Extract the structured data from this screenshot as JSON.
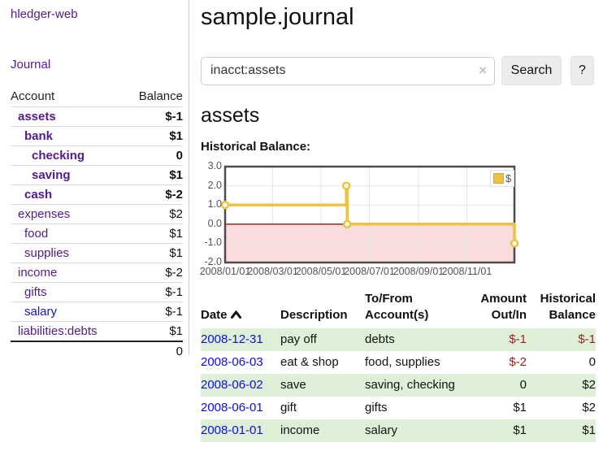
{
  "colors": {
    "link_purple": "#551a8b",
    "link_blue": "#0e0edd",
    "negative_red": "#992222",
    "negative_light": "#c98a8a",
    "row_highlight_green": "#dff0d8",
    "series_yellow": "#edc240",
    "zero_line_red": "#8b1a1a",
    "negative_region_pink": "#fbdcdc"
  },
  "sidebar": {
    "brand": "hledger-web",
    "journal_link": "Journal",
    "accounts": {
      "header_account": "Account",
      "header_balance": "Balance",
      "rows": [
        {
          "name": "assets",
          "balance": "$-1"
        },
        {
          "name": "bank",
          "balance": "$1"
        },
        {
          "name": "checking",
          "balance": "0"
        },
        {
          "name": "saving",
          "balance": "$1"
        },
        {
          "name": "cash",
          "balance": "$-2"
        },
        {
          "name": "expenses",
          "balance": "$2"
        },
        {
          "name": "food",
          "balance": "$1"
        },
        {
          "name": "supplies",
          "balance": "$1"
        },
        {
          "name": "income",
          "balance": "$-2"
        },
        {
          "name": "gifts",
          "balance": "$-1"
        },
        {
          "name": "salary",
          "balance": "$-1"
        },
        {
          "name": "liabilities:debts",
          "balance": "$1"
        }
      ],
      "total": "0"
    }
  },
  "main": {
    "title": "sample.journal",
    "search": {
      "value": "inacct:assets",
      "clear": "×",
      "button": "Search",
      "help": "?"
    },
    "account_heading": "assets",
    "chart_label": "Historical Balance:"
  },
  "chart_data": {
    "type": "line",
    "title": "Historical Balance",
    "step": true,
    "series": [
      {
        "name": "$",
        "color": "#edc240",
        "points": [
          [
            "2008-01-01",
            1.0
          ],
          [
            "2008-06-02",
            2.0
          ],
          [
            "2008-06-03",
            0.0
          ],
          [
            "2008-12-31",
            -1.0
          ]
        ]
      }
    ],
    "x_range": [
      "2008-01-01",
      "2008-12-31"
    ],
    "ylim": [
      -2.0,
      3.0
    ],
    "x_ticks": [
      "2008/01/01",
      "2008/03/01",
      "2008/05/01",
      "2008/07/01",
      "2008/09/01",
      "2008/11/01"
    ],
    "y_tick_labels": [
      "3.0",
      "2.0",
      "1.0",
      "0.0",
      "-1.0",
      "-2.0"
    ],
    "y_tick_values": [
      3.0,
      2.0,
      1.0,
      0.0,
      -1.0,
      -2.0
    ],
    "grid": true,
    "legend": "$",
    "legend_position": "top-right"
  },
  "table": {
    "headers": {
      "date": "Date",
      "description": "Description",
      "accounts": "To/From\nAccount(s)",
      "amount": "Amount\nOut/In",
      "balance": "Historical\nBalance"
    },
    "rows": [
      {
        "date": "2008-12-31",
        "description": "pay off",
        "accounts": "debts",
        "amount": "$-1",
        "balance": "$-1"
      },
      {
        "date": "2008-06-03",
        "description": "eat & shop",
        "accounts": "food, supplies",
        "amount": "$-2",
        "balance": "0"
      },
      {
        "date": "2008-06-02",
        "description": "save",
        "accounts": "saving, checking",
        "amount": "0",
        "balance": "$2"
      },
      {
        "date": "2008-06-01",
        "description": "gift",
        "accounts": "gifts",
        "amount": "$1",
        "balance": "$2"
      },
      {
        "date": "2008-01-01",
        "description": "income",
        "accounts": "salary",
        "amount": "$1",
        "balance": "$1"
      }
    ]
  }
}
